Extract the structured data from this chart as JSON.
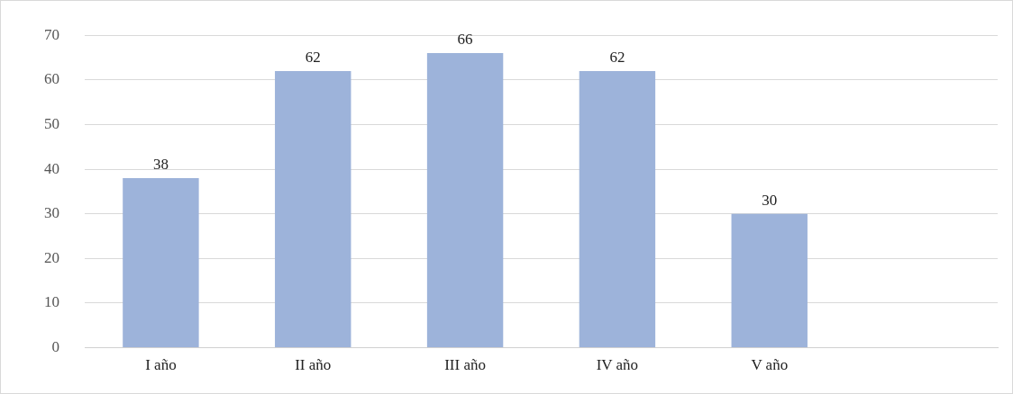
{
  "chart_data": {
    "type": "bar",
    "categories": [
      "I año",
      "II año",
      "III año",
      "IV año",
      "V año",
      null
    ],
    "values": [
      38,
      62,
      66,
      62,
      30,
      null
    ],
    "color": "#9db3da",
    "ylim": [
      0,
      70
    ],
    "yticks": [
      0,
      10,
      20,
      30,
      40,
      50,
      60,
      70
    ],
    "grid": "y",
    "data_labels": true
  }
}
